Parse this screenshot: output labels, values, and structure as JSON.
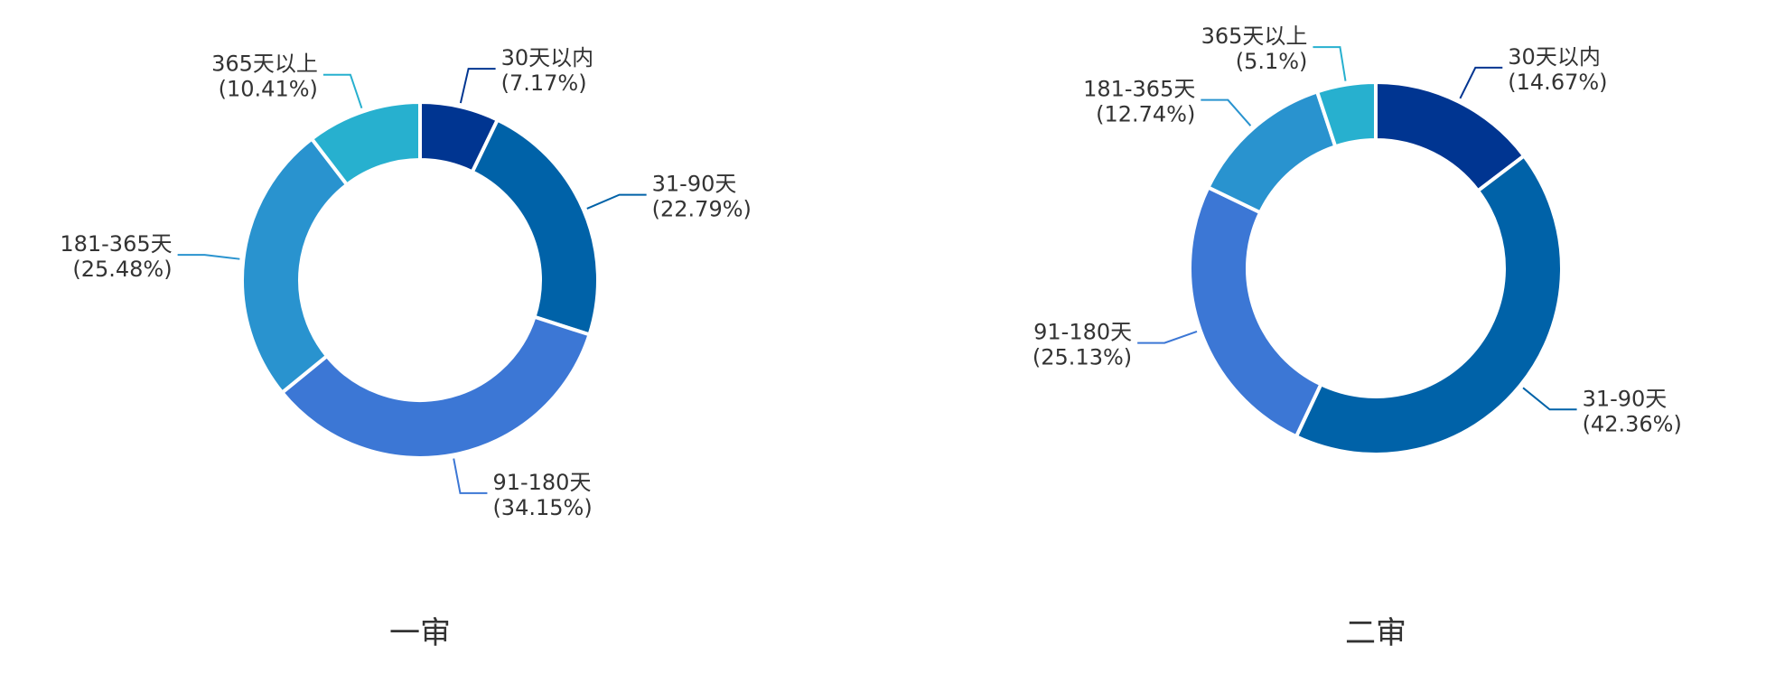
{
  "chart_data": [
    {
      "type": "pie",
      "subtype": "donut",
      "title": "一审",
      "start_angle_deg": 0,
      "direction": "clockwise",
      "slices": [
        {
          "label": "30天以内",
          "pct_text": "(7.17%)",
          "value": 7.17,
          "color": "#003591"
        },
        {
          "label": "31-90天",
          "pct_text": "(22.79%)",
          "value": 22.79,
          "color": "#0062a8"
        },
        {
          "label": "91-180天",
          "pct_text": "(34.15%)",
          "value": 34.15,
          "color": "#3c77d5"
        },
        {
          "label": "181-365天",
          "pct_text": "(25.48%)",
          "value": 25.48,
          "color": "#2993cf"
        },
        {
          "label": "365天以上",
          "pct_text": "(10.41%)",
          "value": 10.41,
          "color": "#27b0cf"
        }
      ]
    },
    {
      "type": "pie",
      "subtype": "donut",
      "title": "二审",
      "start_angle_deg": 0,
      "direction": "clockwise",
      "slices": [
        {
          "label": "30天以内",
          "pct_text": "(14.67%)",
          "value": 14.67,
          "color": "#003591"
        },
        {
          "label": "31-90天",
          "pct_text": "(42.36%)",
          "value": 42.36,
          "color": "#0062a8"
        },
        {
          "label": "91-180天",
          "pct_text": "(25.13%)",
          "value": 25.13,
          "color": "#3c77d5"
        },
        {
          "label": "181-365天",
          "pct_text": "(12.74%)",
          "value": 12.74,
          "color": "#2993cf"
        },
        {
          "label": "365天以上",
          "pct_text": "(5.1%)",
          "value": 5.1,
          "color": "#27b0cf"
        }
      ]
    }
  ]
}
